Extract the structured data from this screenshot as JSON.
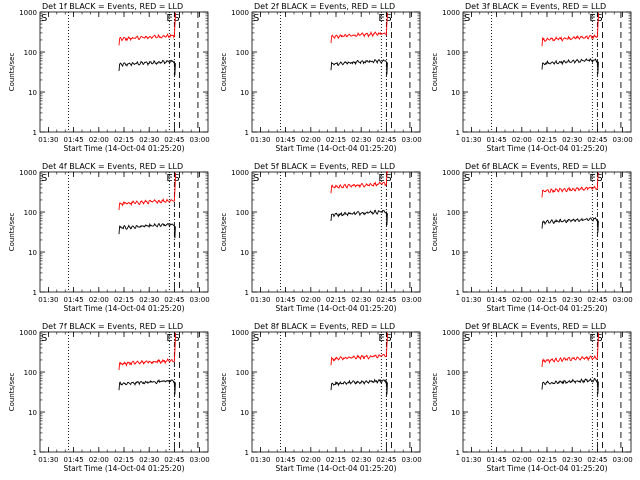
{
  "common": {
    "xlabel": "Start Time (14-Oct-04 01:25:20)",
    "ylabel": "Counts/sec",
    "xticks": [
      "01:30",
      "01:45",
      "02:00",
      "02:15",
      "02:30",
      "02:45",
      "03:00"
    ],
    "yticks": [
      "1",
      "10",
      "100",
      "1000"
    ],
    "marker_s": "S",
    "marker_e": "E",
    "colors": {
      "events": "#000000",
      "lld": "#ff0000",
      "axes": "#000000"
    }
  },
  "chart_data": [
    {
      "type": "line",
      "title": "Det 1f BLACK = Events, RED = LLD",
      "yscale": "log",
      "ylim": [
        1,
        1000
      ],
      "xlim": [
        "01:25",
        "03:05"
      ],
      "vlines": {
        "dotted": [
          "01:42",
          "02:42"
        ],
        "dashdot": [
          "02:45"
        ],
        "dashed": [
          "02:48",
          "02:59"
        ]
      },
      "series": [
        {
          "name": "BLACK = Events",
          "x_range": [
            "02:12",
            "02:45"
          ],
          "level": 48
        },
        {
          "name": "RED = LLD",
          "x_range": [
            "02:12",
            "02:45"
          ],
          "level": 210
        }
      ]
    },
    {
      "type": "line",
      "title": "Det 2f BLACK = Events, RED = LLD",
      "yscale": "log",
      "ylim": [
        1,
        1000
      ],
      "xlim": [
        "01:25",
        "03:05"
      ],
      "vlines": {
        "dotted": [
          "01:42",
          "02:42"
        ],
        "dashdot": [
          "02:45"
        ],
        "dashed": [
          "02:48",
          "02:59"
        ]
      },
      "series": [
        {
          "name": "BLACK = Events",
          "x_range": [
            "02:12",
            "02:45"
          ],
          "level": 50
        },
        {
          "name": "RED = LLD",
          "x_range": [
            "02:12",
            "02:45"
          ],
          "level": 240
        }
      ]
    },
    {
      "type": "line",
      "title": "Det 3f BLACK = Events, RED = LLD",
      "yscale": "log",
      "ylim": [
        1,
        1000
      ],
      "xlim": [
        "01:25",
        "03:05"
      ],
      "vlines": {
        "dotted": [
          "01:42",
          "02:42"
        ],
        "dashdot": [
          "02:45"
        ],
        "dashed": [
          "02:48",
          "02:59"
        ]
      },
      "series": [
        {
          "name": "BLACK = Events",
          "x_range": [
            "02:12",
            "02:45"
          ],
          "level": 52
        },
        {
          "name": "RED = LLD",
          "x_range": [
            "02:12",
            "02:45"
          ],
          "level": 200
        }
      ]
    },
    {
      "type": "line",
      "title": "Det 4f BLACK = Events, RED = LLD",
      "yscale": "log",
      "ylim": [
        1,
        1000
      ],
      "xlim": [
        "01:25",
        "03:05"
      ],
      "vlines": {
        "dotted": [
          "01:42",
          "02:42"
        ],
        "dashdot": [
          "02:45"
        ],
        "dashed": [
          "02:48",
          "02:59"
        ]
      },
      "series": [
        {
          "name": "BLACK = Events",
          "x_range": [
            "02:12",
            "02:45"
          ],
          "level": 40
        },
        {
          "name": "RED = LLD",
          "x_range": [
            "02:12",
            "02:45"
          ],
          "level": 160
        }
      ]
    },
    {
      "type": "line",
      "title": "Det 5f BLACK = Events, RED = LLD",
      "yscale": "log",
      "ylim": [
        1,
        1000
      ],
      "xlim": [
        "01:25",
        "03:05"
      ],
      "vlines": {
        "dotted": [
          "01:42",
          "02:42"
        ],
        "dashdot": [
          "02:45"
        ],
        "dashed": [
          "02:48",
          "02:59"
        ]
      },
      "series": [
        {
          "name": "BLACK = Events",
          "x_range": [
            "02:12",
            "02:45"
          ],
          "level": 85
        },
        {
          "name": "RED = LLD",
          "x_range": [
            "02:12",
            "02:45"
          ],
          "level": 420
        }
      ]
    },
    {
      "type": "line",
      "title": "Det 6f BLACK = Events, RED = LLD",
      "yscale": "log",
      "ylim": [
        1,
        1000
      ],
      "xlim": [
        "01:25",
        "03:05"
      ],
      "vlines": {
        "dotted": [
          "01:42",
          "02:42"
        ],
        "dashdot": [
          "02:45"
        ],
        "dashed": [
          "02:48",
          "02:59"
        ]
      },
      "series": [
        {
          "name": "BLACK = Events",
          "x_range": [
            "02:12",
            "02:45"
          ],
          "level": 55
        },
        {
          "name": "RED = LLD",
          "x_range": [
            "02:12",
            "02:45"
          ],
          "level": 330
        }
      ]
    },
    {
      "type": "line",
      "title": "Det 7f BLACK = Events, RED = LLD",
      "yscale": "log",
      "ylim": [
        1,
        1000
      ],
      "xlim": [
        "01:25",
        "03:05"
      ],
      "vlines": {
        "dotted": [
          "01:42",
          "02:42"
        ],
        "dashdot": [
          "02:45"
        ],
        "dashed": [
          "02:48",
          "02:59"
        ]
      },
      "series": [
        {
          "name": "BLACK = Events",
          "x_range": [
            "02:12",
            "02:45"
          ],
          "level": 50
        },
        {
          "name": "RED = LLD",
          "x_range": [
            "02:12",
            "02:45"
          ],
          "level": 160
        }
      ]
    },
    {
      "type": "line",
      "title": "Det 8f BLACK = Events, RED = LLD",
      "yscale": "log",
      "ylim": [
        1,
        1000
      ],
      "xlim": [
        "01:25",
        "03:05"
      ],
      "vlines": {
        "dotted": [
          "01:42",
          "02:42"
        ],
        "dashdot": [
          "02:45"
        ],
        "dashed": [
          "02:48",
          "02:59"
        ]
      },
      "series": [
        {
          "name": "BLACK = Events",
          "x_range": [
            "02:12",
            "02:45"
          ],
          "level": 50
        },
        {
          "name": "RED = LLD",
          "x_range": [
            "02:12",
            "02:45"
          ],
          "level": 210
        }
      ]
    },
    {
      "type": "line",
      "title": "Det 9f BLACK = Events, RED = LLD",
      "yscale": "log",
      "ylim": [
        1,
        1000
      ],
      "xlim": [
        "01:25",
        "03:05"
      ],
      "vlines": {
        "dotted": [
          "01:42",
          "02:42"
        ],
        "dashdot": [
          "02:45"
        ],
        "dashed": [
          "02:48",
          "02:59"
        ]
      },
      "series": [
        {
          "name": "BLACK = Events",
          "x_range": [
            "02:12",
            "02:45"
          ],
          "level": 52
        },
        {
          "name": "RED = LLD",
          "x_range": [
            "02:12",
            "02:45"
          ],
          "level": 190
        }
      ]
    }
  ]
}
